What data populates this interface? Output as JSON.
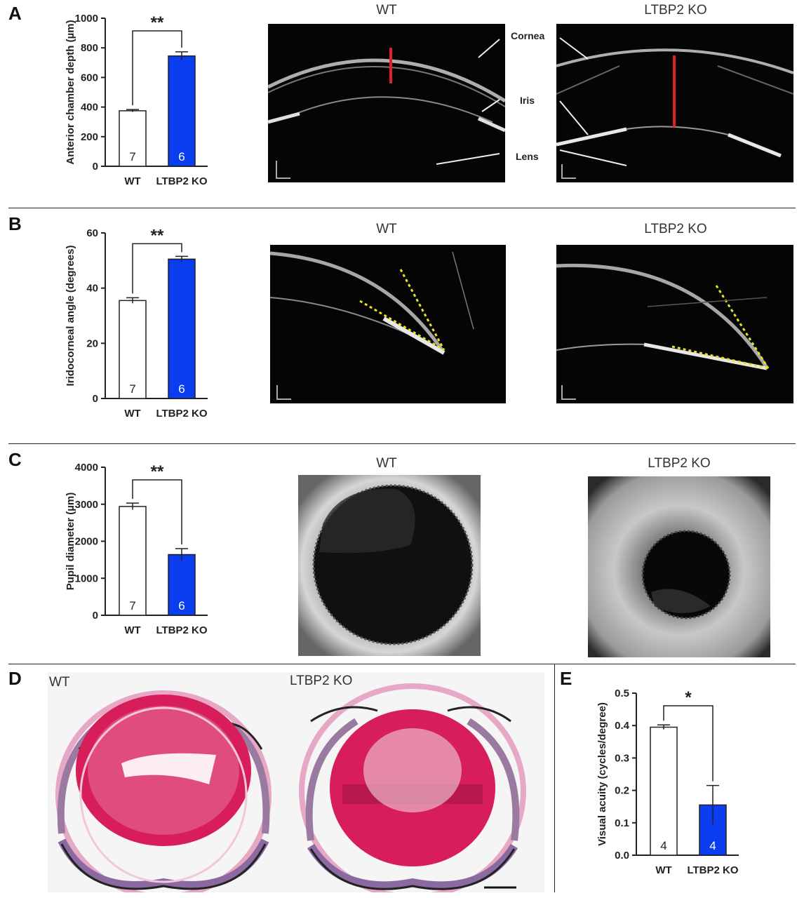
{
  "panels": {
    "A": {
      "letter": "A",
      "chart_data": {
        "type": "bar",
        "ylabel": "Anterior chamber depth (µm)",
        "ylim": [
          0,
          1000
        ],
        "yticks": [
          0,
          200,
          400,
          600,
          800,
          1000
        ],
        "categories": [
          "WT",
          "LTBP2 KO"
        ],
        "values": [
          375,
          745
        ],
        "errors": [
          8,
          28
        ],
        "n": [
          "7",
          "6"
        ],
        "significance": "**"
      },
      "images": [
        {
          "title": "WT"
        },
        {
          "title": "LTBP2 KO"
        }
      ],
      "annotations": {
        "cornea": "Cornea",
        "iris": "Iris",
        "lens": "Lens"
      }
    },
    "B": {
      "letter": "B",
      "chart_data": {
        "type": "bar",
        "ylabel": "Iridocorneal angle (degrees)",
        "ylim": [
          0,
          60
        ],
        "yticks": [
          0,
          20,
          40,
          60
        ],
        "categories": [
          "WT",
          "LTBP2 KO"
        ],
        "values": [
          35.5,
          50.5
        ],
        "errors": [
          1.0,
          1.0
        ],
        "n": [
          "7",
          "6"
        ],
        "significance": "**"
      },
      "images": [
        {
          "title": "WT"
        },
        {
          "title": "LTBP2 KO"
        }
      ]
    },
    "C": {
      "letter": "C",
      "chart_data": {
        "type": "bar",
        "ylabel": "Pupil diameter (µm)",
        "ylim": [
          0,
          4000
        ],
        "yticks": [
          0,
          1000,
          2000,
          3000,
          4000
        ],
        "categories": [
          "WT",
          "LTBP2 KO"
        ],
        "values": [
          2940,
          1640
        ],
        "errors": [
          90,
          160
        ],
        "n": [
          "7",
          "6"
        ],
        "significance": "**"
      },
      "images": [
        {
          "title": "WT"
        },
        {
          "title": "LTBP2 KO"
        }
      ]
    },
    "D": {
      "letter": "D",
      "labels": {
        "wt": "WT",
        "ko": "LTBP2 KO"
      }
    },
    "E": {
      "letter": "E",
      "chart_data": {
        "type": "bar",
        "ylabel": "Visual acuity (cycles/degree)",
        "ylim": [
          0,
          0.5
        ],
        "yticks": [
          0.0,
          0.1,
          0.2,
          0.3,
          0.4,
          0.5
        ],
        "ytick_labels": [
          "0.0",
          "0.1",
          "0.2",
          "0.3",
          "0.4",
          "0.5"
        ],
        "categories": [
          "WT",
          "LTBP2 KO"
        ],
        "values": [
          0.395,
          0.155
        ],
        "errors": [
          0.007,
          0.06
        ],
        "n": [
          "4",
          "4"
        ],
        "significance": "*"
      }
    }
  },
  "colors": {
    "ko_bar": "#0a3cf0",
    "wt_bar": "#ffffff",
    "redline": "#e0202a",
    "yellow": "#e8e020"
  }
}
